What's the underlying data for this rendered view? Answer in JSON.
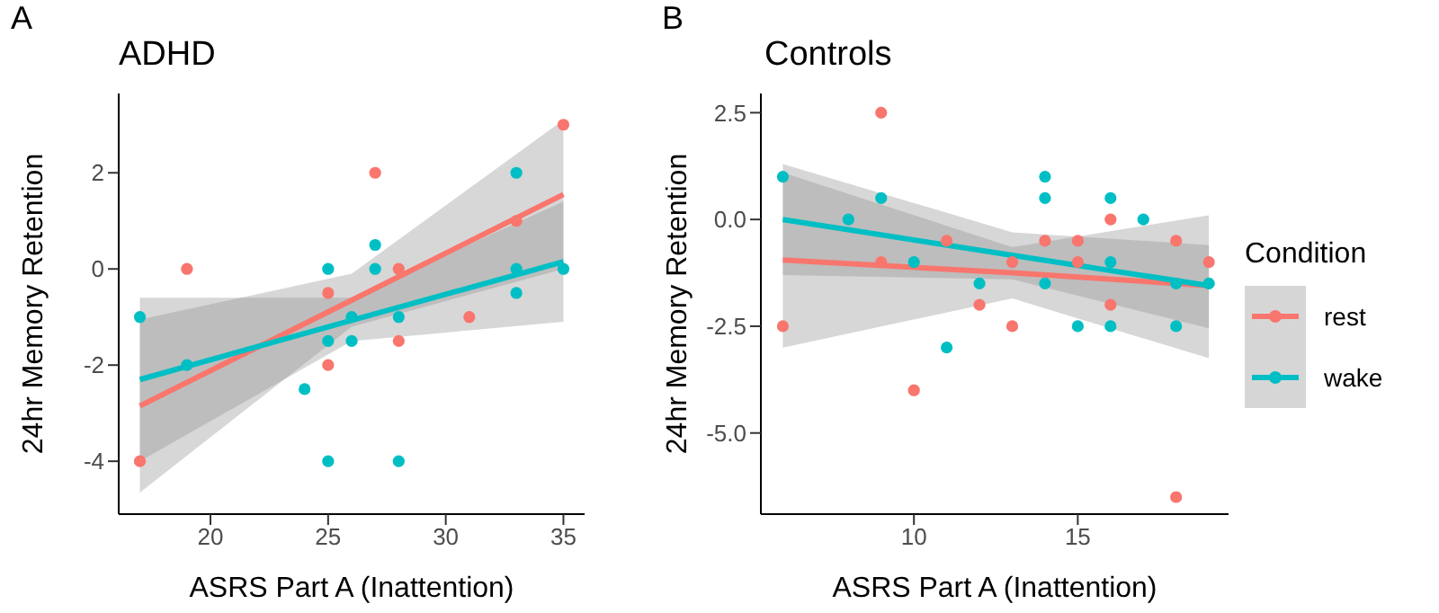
{
  "chart_data": [
    {
      "type": "scatter",
      "title": "ADHD",
      "annotations": [
        "A"
      ],
      "xlabel": "ASRS Part A (Inattention)",
      "ylabel": "24hr Memory Retention",
      "xlim": [
        16.1,
        35.9
      ],
      "ylim": [
        -5.1,
        3.65
      ],
      "xticks": [
        20,
        25,
        30,
        35
      ],
      "yticks": [
        -4,
        -2,
        0,
        2
      ],
      "grid": false,
      "marker": "circle",
      "series": [
        {
          "color": "#f8766d",
          "x": [
            17,
            19,
            25,
            25,
            27,
            28,
            28,
            31,
            33,
            35
          ],
          "values": [
            -4,
            0,
            -0.5,
            -2,
            2,
            0,
            -1.5,
            -1,
            1,
            3
          ]
        },
        {
          "color": "#00bfc4",
          "x": [
            17,
            19,
            24,
            25,
            25,
            25,
            26,
            26,
            27,
            27,
            28,
            28,
            33,
            33,
            33,
            35
          ],
          "values": [
            -1,
            -2,
            -2.5,
            0,
            -1.5,
            -4,
            -1,
            -1.5,
            0.5,
            0,
            -1,
            -4,
            2,
            0,
            -0.5,
            0
          ]
        },
        {
          "type": "line",
          "marker": "none",
          "color": "#f8766d",
          "x": [
            17,
            26,
            35
          ],
          "values": [
            -2.85,
            -0.65,
            1.55
          ],
          "lower": [
            -4.65,
            -1.2,
            0
          ],
          "upper": [
            -1.05,
            -0.1,
            3.1
          ]
        },
        {
          "type": "line",
          "marker": "none",
          "color": "#00bfc4",
          "x": [
            17,
            26,
            35
          ],
          "values": [
            -2.3,
            -1.07,
            0.15
          ],
          "lower": [
            -4,
            -1.5,
            -1.1
          ],
          "upper": [
            -0.6,
            -0.6,
            1.4
          ]
        }
      ]
    },
    {
      "type": "scatter",
      "title": "Controls",
      "annotations": [
        "B"
      ],
      "xlabel": "ASRS Part A (Inattention)",
      "ylabel": "24hr Memory Retention",
      "xlim": [
        5.33,
        19.6
      ],
      "ylim": [
        -6.9,
        2.95
      ],
      "xticks": [
        10,
        15
      ],
      "yticks": [
        {
          "value": -5,
          "label": "-5.0"
        },
        {
          "value": -2.5,
          "label": "-2.5"
        },
        {
          "value": 0,
          "label": "0.0"
        },
        {
          "value": 2.5,
          "label": "2.5"
        }
      ],
      "grid": false,
      "marker": "circle",
      "legend": "right",
      "legend_title": "Condition",
      "series": [
        {
          "name": "rest",
          "color": "#f8766d",
          "x": [
            6,
            9,
            9,
            10,
            11,
            12,
            13,
            13,
            14,
            15,
            15,
            16,
            16,
            18,
            18,
            19
          ],
          "values": [
            -2.5,
            2.5,
            -1,
            -4,
            -0.5,
            -2,
            -1,
            -2.5,
            -0.5,
            -0.5,
            -1,
            0,
            -2,
            -0.5,
            -6.5,
            -1
          ]
        },
        {
          "name": "wake",
          "color": "#00bfc4",
          "x": [
            6,
            8,
            9,
            10,
            11,
            12,
            14,
            14,
            14,
            15,
            16,
            16,
            16,
            17,
            18,
            18,
            19
          ],
          "values": [
            1,
            0,
            0.5,
            -1,
            -3,
            -1.5,
            1,
            0.5,
            -1.5,
            -2.5,
            0.5,
            -1,
            -2.5,
            0,
            -1.5,
            -2.5,
            -1.5
          ]
        },
        {
          "type": "line",
          "marker": "none",
          "color": "#f8766d",
          "x": [
            6,
            13,
            19
          ],
          "values": [
            -0.95,
            -1.25,
            -1.55
          ],
          "lower": [
            -3,
            -1.85,
            -3.25
          ],
          "upper": [
            1.1,
            -0.65,
            0.1
          ]
        },
        {
          "type": "line",
          "marker": "none",
          "color": "#00bfc4",
          "x": [
            6,
            13,
            19
          ],
          "values": [
            0,
            -0.84,
            -1.55
          ],
          "lower": [
            -1.3,
            -1.4,
            -2.55
          ],
          "upper": [
            1.3,
            -0.3,
            -0.6
          ]
        }
      ]
    }
  ]
}
